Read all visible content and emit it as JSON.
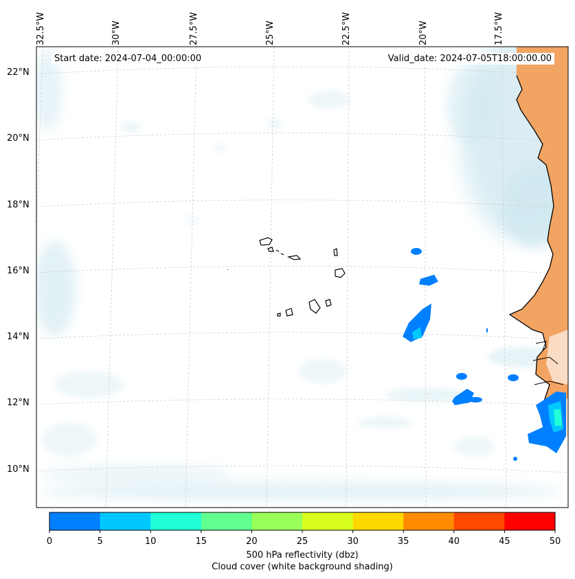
{
  "header": {
    "start_date": "Start date: 2024-07-04_00:00:00",
    "valid_date": "Valid_date: 2024-07-05T18:00:00.00"
  },
  "axes": {
    "longitude_labels": [
      "32.5°W",
      "30°W",
      "27.5°W",
      "25°W",
      "22.5°W",
      "20°W",
      "17.5°W"
    ],
    "latitude_labels": [
      "22°N",
      "20°N",
      "18°N",
      "16°N",
      "14°N",
      "12°N",
      "10°N"
    ]
  },
  "colorbar": {
    "ticks": [
      "0",
      "5",
      "10",
      "15",
      "20",
      "25",
      "30",
      "35",
      "40",
      "45",
      "50"
    ],
    "colors": [
      "#0080ff",
      "#00c8ff",
      "#20ffd8",
      "#60ff90",
      "#98ff58",
      "#d8ff20",
      "#ffd800",
      "#ff8c00",
      "#ff4800",
      "#ff0000"
    ],
    "label_line1": "500 hPa reflectivity (dbz)",
    "label_line2": "Cloud cover (white background shading)"
  },
  "colors": {
    "land": "#f2a462",
    "cloud": "#cfe8f0",
    "frame": "#000000",
    "grid": "#cccccc"
  }
}
